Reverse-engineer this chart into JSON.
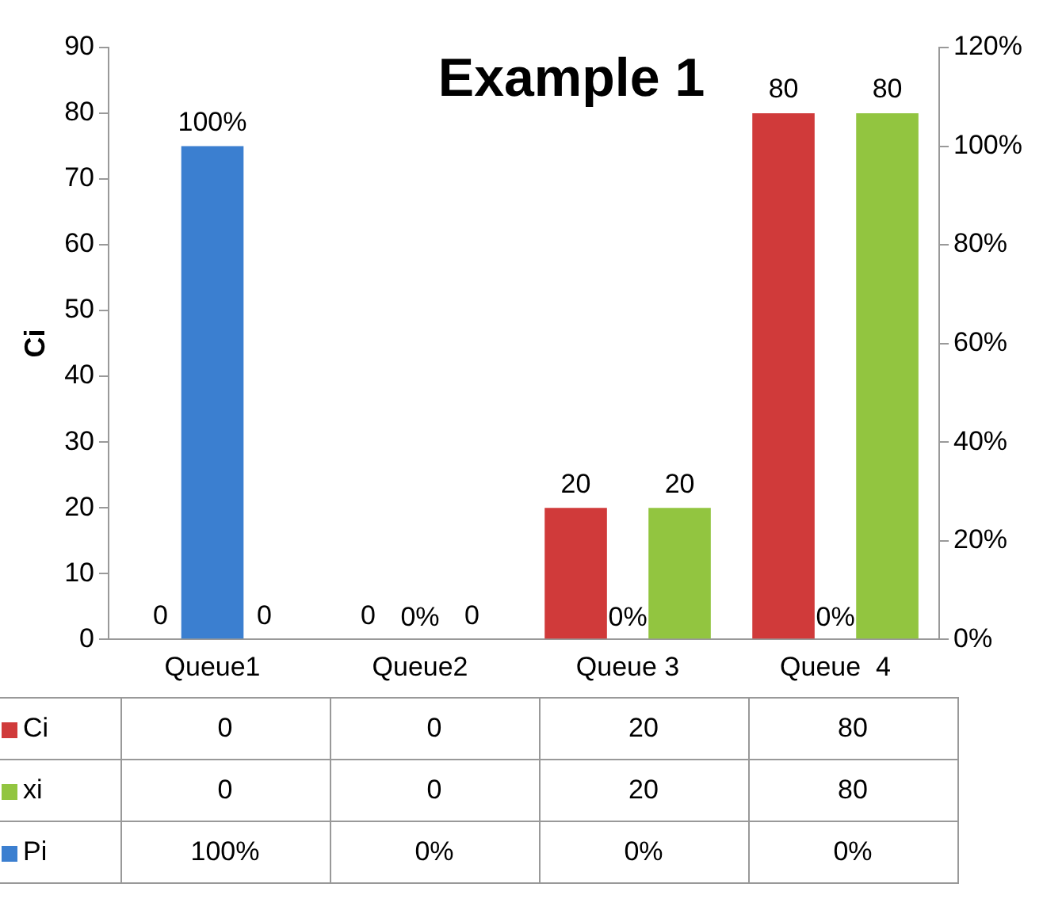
{
  "chart_data": {
    "type": "bar",
    "title": "Example 1",
    "ylabel": "Ci",
    "categories": [
      "Queue1",
      "Queue2",
      "Queue 3",
      "Queue  4"
    ],
    "series": [
      {
        "name": "Ci",
        "color": "#d03a3a",
        "values": [
          0,
          0,
          20,
          80
        ],
        "value_labels": [
          "0",
          "0",
          "20",
          "80"
        ]
      },
      {
        "name": "xi",
        "color": "#92c540",
        "values": [
          0,
          0,
          20,
          80
        ],
        "value_labels": [
          "0",
          "0",
          "20",
          "80"
        ]
      },
      {
        "name": "Pi",
        "color": "#3b7fd0",
        "axis": "y2",
        "values": [
          100,
          0,
          0,
          0
        ],
        "value_labels": [
          "100%",
          "0%",
          "0%",
          "0%"
        ]
      }
    ],
    "ylim": [
      0,
      90
    ],
    "yticks": [
      0,
      10,
      20,
      30,
      40,
      50,
      60,
      70,
      80,
      90
    ],
    "y2lim": [
      0,
      120
    ],
    "y2ticks": [
      {
        "value": 0,
        "label": "0%"
      },
      {
        "value": 20,
        "label": "20%"
      },
      {
        "value": 40,
        "label": "40%"
      },
      {
        "value": 60,
        "label": "60%"
      },
      {
        "value": 80,
        "label": "80%"
      },
      {
        "value": 100,
        "label": "100%"
      },
      {
        "value": 120,
        "label": "120%"
      }
    ],
    "grid": false,
    "legend": "bottom"
  }
}
